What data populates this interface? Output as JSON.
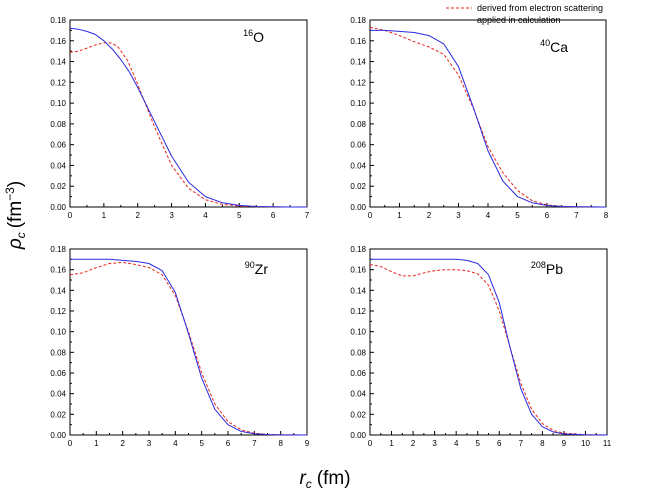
{
  "figure": {
    "ylabel": {
      "symbol": "ρ",
      "sub": "c",
      "unit": "(fm",
      "exp": "−3",
      "close": ")"
    },
    "xlabel": {
      "symbol": "r",
      "sub": "c",
      "unit": "(fm)"
    },
    "legend": {
      "items": [
        {
          "label": "derived from electron scattering",
          "color": "#e8281e",
          "style": "dashed"
        },
        {
          "label": "applied in calculation",
          "color": "#2a2ae0",
          "style": "solid"
        }
      ]
    }
  },
  "chart_data": [
    {
      "type": "line",
      "nucleus": {
        "mass": "16",
        "symbol": "O"
      },
      "xlim": [
        0,
        7
      ],
      "ylim": [
        0,
        0.18
      ],
      "xticks": [
        0,
        1,
        2,
        3,
        4,
        5,
        6,
        7
      ],
      "yticks": [
        0.0,
        0.02,
        0.04,
        0.06,
        0.08,
        0.1,
        0.12,
        0.14,
        0.16,
        0.18
      ],
      "series": [
        {
          "name": "derived from electron scattering",
          "x": [
            0,
            0.25,
            0.5,
            0.75,
            1,
            1.2,
            1.4,
            1.7,
            2,
            2.5,
            3,
            3.5,
            4,
            4.5,
            5,
            5.5,
            6,
            6.5,
            7
          ],
          "y": [
            0.149,
            0.15,
            0.153,
            0.156,
            0.158,
            0.158,
            0.155,
            0.141,
            0.118,
            0.077,
            0.04,
            0.018,
            0.007,
            0.0025,
            0.0009,
            0.0003,
            0.0001,
            0.0,
            0.0
          ]
        },
        {
          "name": "applied in calculation",
          "x": [
            0,
            0.25,
            0.5,
            0.75,
            1,
            1.25,
            1.5,
            1.75,
            2,
            2.5,
            3,
            3.5,
            4,
            4.5,
            5,
            5.5,
            6,
            6.5,
            7
          ],
          "y": [
            0.172,
            0.171,
            0.169,
            0.166,
            0.16,
            0.152,
            0.142,
            0.13,
            0.115,
            0.082,
            0.049,
            0.024,
            0.01,
            0.004,
            0.0015,
            0.0005,
            0.0002,
            0.0,
            0.0
          ]
        }
      ]
    },
    {
      "type": "line",
      "nucleus": {
        "mass": "40",
        "symbol": "Ca"
      },
      "xlim": [
        0,
        8
      ],
      "ylim": [
        0,
        0.18
      ],
      "xticks": [
        0,
        1,
        2,
        3,
        4,
        5,
        6,
        7,
        8
      ],
      "yticks": [
        0.0,
        0.02,
        0.04,
        0.06,
        0.08,
        0.1,
        0.12,
        0.14,
        0.16,
        0.18
      ],
      "series": [
        {
          "name": "derived from electron scattering",
          "x": [
            0,
            0.5,
            1,
            1.5,
            2,
            2.5,
            3,
            3.5,
            4,
            4.5,
            5,
            5.5,
            6,
            6.5,
            7,
            8
          ],
          "y": [
            0.173,
            0.17,
            0.165,
            0.159,
            0.154,
            0.147,
            0.127,
            0.095,
            0.058,
            0.033,
            0.016,
            0.006,
            0.002,
            0.0007,
            0.0002,
            0.0
          ]
        },
        {
          "name": "applied in calculation",
          "x": [
            0,
            0.5,
            1,
            1.5,
            2,
            2.5,
            3,
            3.5,
            4,
            4.5,
            5,
            5.5,
            6,
            6.5,
            7,
            8
          ],
          "y": [
            0.17,
            0.17,
            0.169,
            0.168,
            0.165,
            0.157,
            0.135,
            0.096,
            0.054,
            0.025,
            0.01,
            0.004,
            0.0014,
            0.0005,
            0.0002,
            0.0
          ]
        }
      ]
    },
    {
      "type": "line",
      "nucleus": {
        "mass": "90",
        "symbol": "Zr"
      },
      "xlim": [
        0,
        9
      ],
      "ylim": [
        0,
        0.18
      ],
      "xticks": [
        0,
        1,
        2,
        3,
        4,
        5,
        6,
        7,
        8,
        9
      ],
      "yticks": [
        0.0,
        0.02,
        0.04,
        0.06,
        0.08,
        0.1,
        0.12,
        0.14,
        0.16,
        0.18
      ],
      "series": [
        {
          "name": "derived from electron scattering",
          "x": [
            0,
            0.5,
            1,
            1.5,
            2,
            2.5,
            3,
            3.5,
            4,
            4.5,
            5,
            5.5,
            6,
            6.5,
            7,
            7.5,
            8,
            9
          ],
          "y": [
            0.155,
            0.157,
            0.162,
            0.166,
            0.167,
            0.165,
            0.162,
            0.155,
            0.135,
            0.1,
            0.06,
            0.03,
            0.013,
            0.005,
            0.0017,
            0.0006,
            0.0002,
            0.0
          ]
        },
        {
          "name": "applied in calculation",
          "x": [
            0,
            0.5,
            1,
            1.5,
            2,
            2.5,
            3,
            3.5,
            4,
            4.5,
            5,
            5.5,
            6,
            6.5,
            7,
            7.5,
            8,
            9
          ],
          "y": [
            0.17,
            0.17,
            0.17,
            0.17,
            0.169,
            0.168,
            0.166,
            0.159,
            0.138,
            0.098,
            0.055,
            0.025,
            0.01,
            0.0035,
            0.0012,
            0.0004,
            0.0001,
            0.0
          ]
        }
      ]
    },
    {
      "type": "line",
      "nucleus": {
        "mass": "208",
        "symbol": "Pb"
      },
      "xlim": [
        0,
        11
      ],
      "ylim": [
        0,
        0.18
      ],
      "xticks": [
        0,
        1,
        2,
        3,
        4,
        5,
        6,
        7,
        8,
        9,
        10,
        11
      ],
      "yticks": [
        0.0,
        0.02,
        0.04,
        0.06,
        0.08,
        0.1,
        0.12,
        0.14,
        0.16,
        0.18
      ],
      "series": [
        {
          "name": "derived from electron scattering",
          "x": [
            0,
            0.5,
            1,
            1.5,
            2,
            2.5,
            3,
            3.5,
            4,
            4.5,
            5,
            5.5,
            6,
            6.5,
            7,
            7.5,
            8,
            8.5,
            9,
            10,
            11
          ],
          "y": [
            0.165,
            0.163,
            0.158,
            0.154,
            0.154,
            0.157,
            0.159,
            0.16,
            0.16,
            0.159,
            0.156,
            0.145,
            0.12,
            0.085,
            0.05,
            0.025,
            0.011,
            0.0045,
            0.0017,
            0.0003,
            0.0
          ]
        },
        {
          "name": "applied in calculation",
          "x": [
            0,
            0.5,
            1,
            1.5,
            2,
            2.5,
            3,
            3.5,
            4,
            4.5,
            5,
            5.5,
            6,
            6.5,
            7,
            7.5,
            8,
            8.5,
            9,
            10,
            11
          ],
          "y": [
            0.17,
            0.17,
            0.17,
            0.17,
            0.17,
            0.17,
            0.17,
            0.17,
            0.17,
            0.169,
            0.166,
            0.155,
            0.128,
            0.085,
            0.045,
            0.02,
            0.008,
            0.003,
            0.001,
            0.0002,
            0.0
          ]
        }
      ]
    }
  ]
}
